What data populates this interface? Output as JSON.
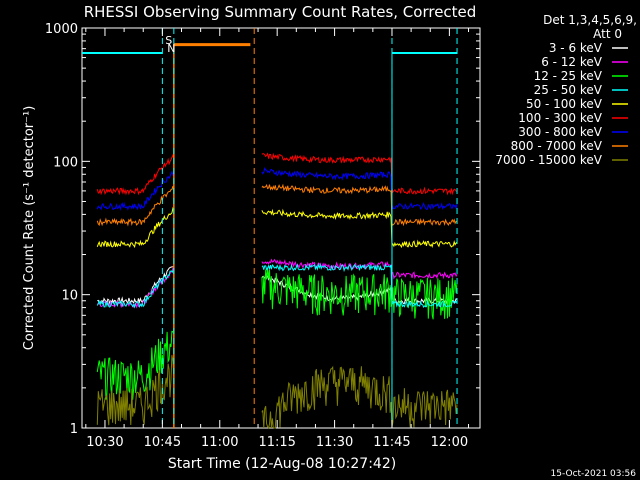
{
  "chart_data": {
    "type": "line",
    "title": "RHESSI Observing Summary Count Rates, Corrected",
    "xlabel": "Start Time (12-Aug-08 10:27:42)",
    "ylabel": "Corrected Count Rate (s⁻¹ detector⁻¹)",
    "y_scale": "log",
    "ylim": [
      1,
      1000
    ],
    "xlim_minutes": [
      "10:24",
      "12:08"
    ],
    "x_ticks": [
      "10:30",
      "10:45",
      "11:00",
      "11:15",
      "11:30",
      "11:45",
      "12:00"
    ],
    "y_ticks": [
      "1",
      "10",
      "100",
      "1000"
    ],
    "legend_header": [
      "Det 1,3,4,5,6,9,",
      "Att 0"
    ],
    "legend_position": "right",
    "timestamp": "15-Oct-2021 03:56",
    "annotations": [
      "S",
      "N"
    ],
    "gaps": [
      {
        "from": "10:47",
        "to": "11:09",
        "note": "SAA / no data"
      }
    ],
    "night_markers": [
      "10:45",
      "10:48",
      "11:09",
      "11:45",
      "12:02"
    ],
    "series": [
      {
        "name": "3 - 6 keV",
        "color": "#ffffff",
        "pre": 9,
        "post_start": 14,
        "post_mid": 11,
        "post_end": 9
      },
      {
        "name": "6 - 12 keV",
        "color": "#ff00ff",
        "pre": 8.5,
        "post_start": 18,
        "post_mid": 17,
        "post_end": 14
      },
      {
        "name": "12 - 25 keV",
        "color": "#00ff00",
        "pre": 2.5,
        "post_start": 12,
        "post_mid": 11,
        "post_end": 10
      },
      {
        "name": "25 - 50 keV",
        "color": "#00ffff",
        "pre": 8.5,
        "post_start": 16,
        "post_mid": 16,
        "post_end": 8.5
      },
      {
        "name": "50 - 100 keV",
        "color": "#ffff00",
        "pre": 24,
        "post_start": 42,
        "post_mid": 40,
        "post_end": 24
      },
      {
        "name": "100 - 300 keV",
        "color": "#ff0000",
        "pre": 60,
        "post_start": 110,
        "post_mid": 105,
        "post_end": 60
      },
      {
        "name": "300 - 800 keV",
        "color": "#0000ff",
        "pre": 46,
        "post_start": 85,
        "post_mid": 80,
        "post_end": 46
      },
      {
        "name": "800 - 7000 keV",
        "color": "#ff7f00",
        "pre": 35,
        "post_start": 65,
        "post_mid": 62,
        "post_end": 35
      },
      {
        "name": "7000 - 15000 keV",
        "color": "#808000",
        "pre": 1.5,
        "post_start": 1,
        "post_mid": 1.8,
        "post_end": 1.5
      }
    ],
    "saa_level": 750,
    "cyan_flag_level": 650
  }
}
